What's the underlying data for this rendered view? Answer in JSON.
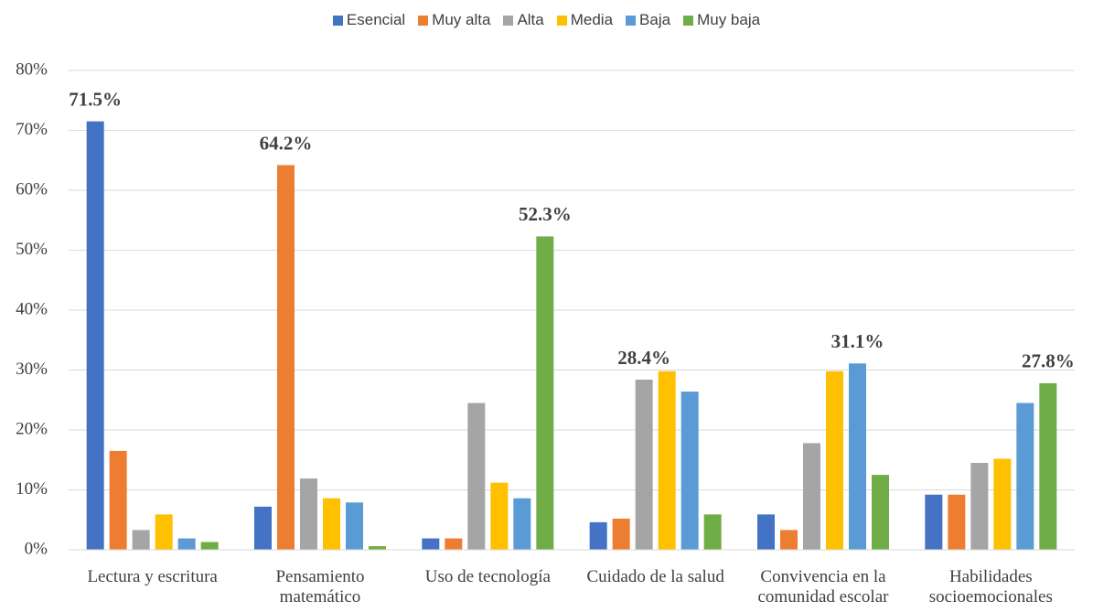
{
  "chart_data": {
    "type": "bar",
    "categories": [
      "Lectura y escritura",
      "Pensamiento matemático",
      "Uso de tecnología",
      "Cuidado de la salud",
      "Convivencia en la comunidad escolar",
      "Habilidades socioemocionales"
    ],
    "series": [
      {
        "name": "Esencial",
        "color": "#4472c4",
        "values": [
          71.5,
          7.2,
          1.9,
          4.6,
          5.9,
          9.2
        ],
        "value_labels": [
          "71.5%",
          null,
          null,
          null,
          null,
          null
        ]
      },
      {
        "name": "Muy alta",
        "color": "#ed7d31",
        "values": [
          16.5,
          64.2,
          1.9,
          5.2,
          3.3,
          9.2
        ],
        "value_labels": [
          null,
          "64.2%",
          null,
          null,
          null,
          null
        ]
      },
      {
        "name": "Alta",
        "color": "#a5a5a5",
        "values": [
          3.3,
          11.9,
          24.5,
          28.4,
          17.8,
          14.5
        ],
        "value_labels": [
          null,
          null,
          null,
          "28.4%",
          null,
          null
        ]
      },
      {
        "name": "Media",
        "color": "#ffc000",
        "values": [
          5.9,
          8.6,
          11.2,
          29.8,
          29.8,
          15.2
        ]
      },
      {
        "name": "Baja",
        "color": "#5b9bd5",
        "values": [
          1.9,
          7.9,
          8.6,
          26.4,
          31.1,
          24.5
        ],
        "value_labels": [
          null,
          null,
          null,
          null,
          "31.1%",
          null
        ]
      },
      {
        "name": "Muy baja",
        "color": "#70ad47",
        "values": [
          1.3,
          0.6,
          52.3,
          5.9,
          12.5,
          27.8
        ],
        "value_labels": [
          null,
          null,
          "52.3%",
          null,
          null,
          "27.8%"
        ]
      }
    ],
    "ylim": [
      0,
      80
    ],
    "yticks": [
      {
        "value": 0,
        "label": "0%"
      },
      {
        "value": 10,
        "label": "10%"
      },
      {
        "value": 20,
        "label": "20%"
      },
      {
        "value": 30,
        "label": "30%"
      },
      {
        "value": 40,
        "label": "40%"
      },
      {
        "value": 50,
        "label": "50%"
      },
      {
        "value": 60,
        "label": "60%"
      },
      {
        "value": 70,
        "label": "70%"
      },
      {
        "value": 80,
        "label": "80%"
      }
    ],
    "grid": true,
    "legend": "top"
  }
}
